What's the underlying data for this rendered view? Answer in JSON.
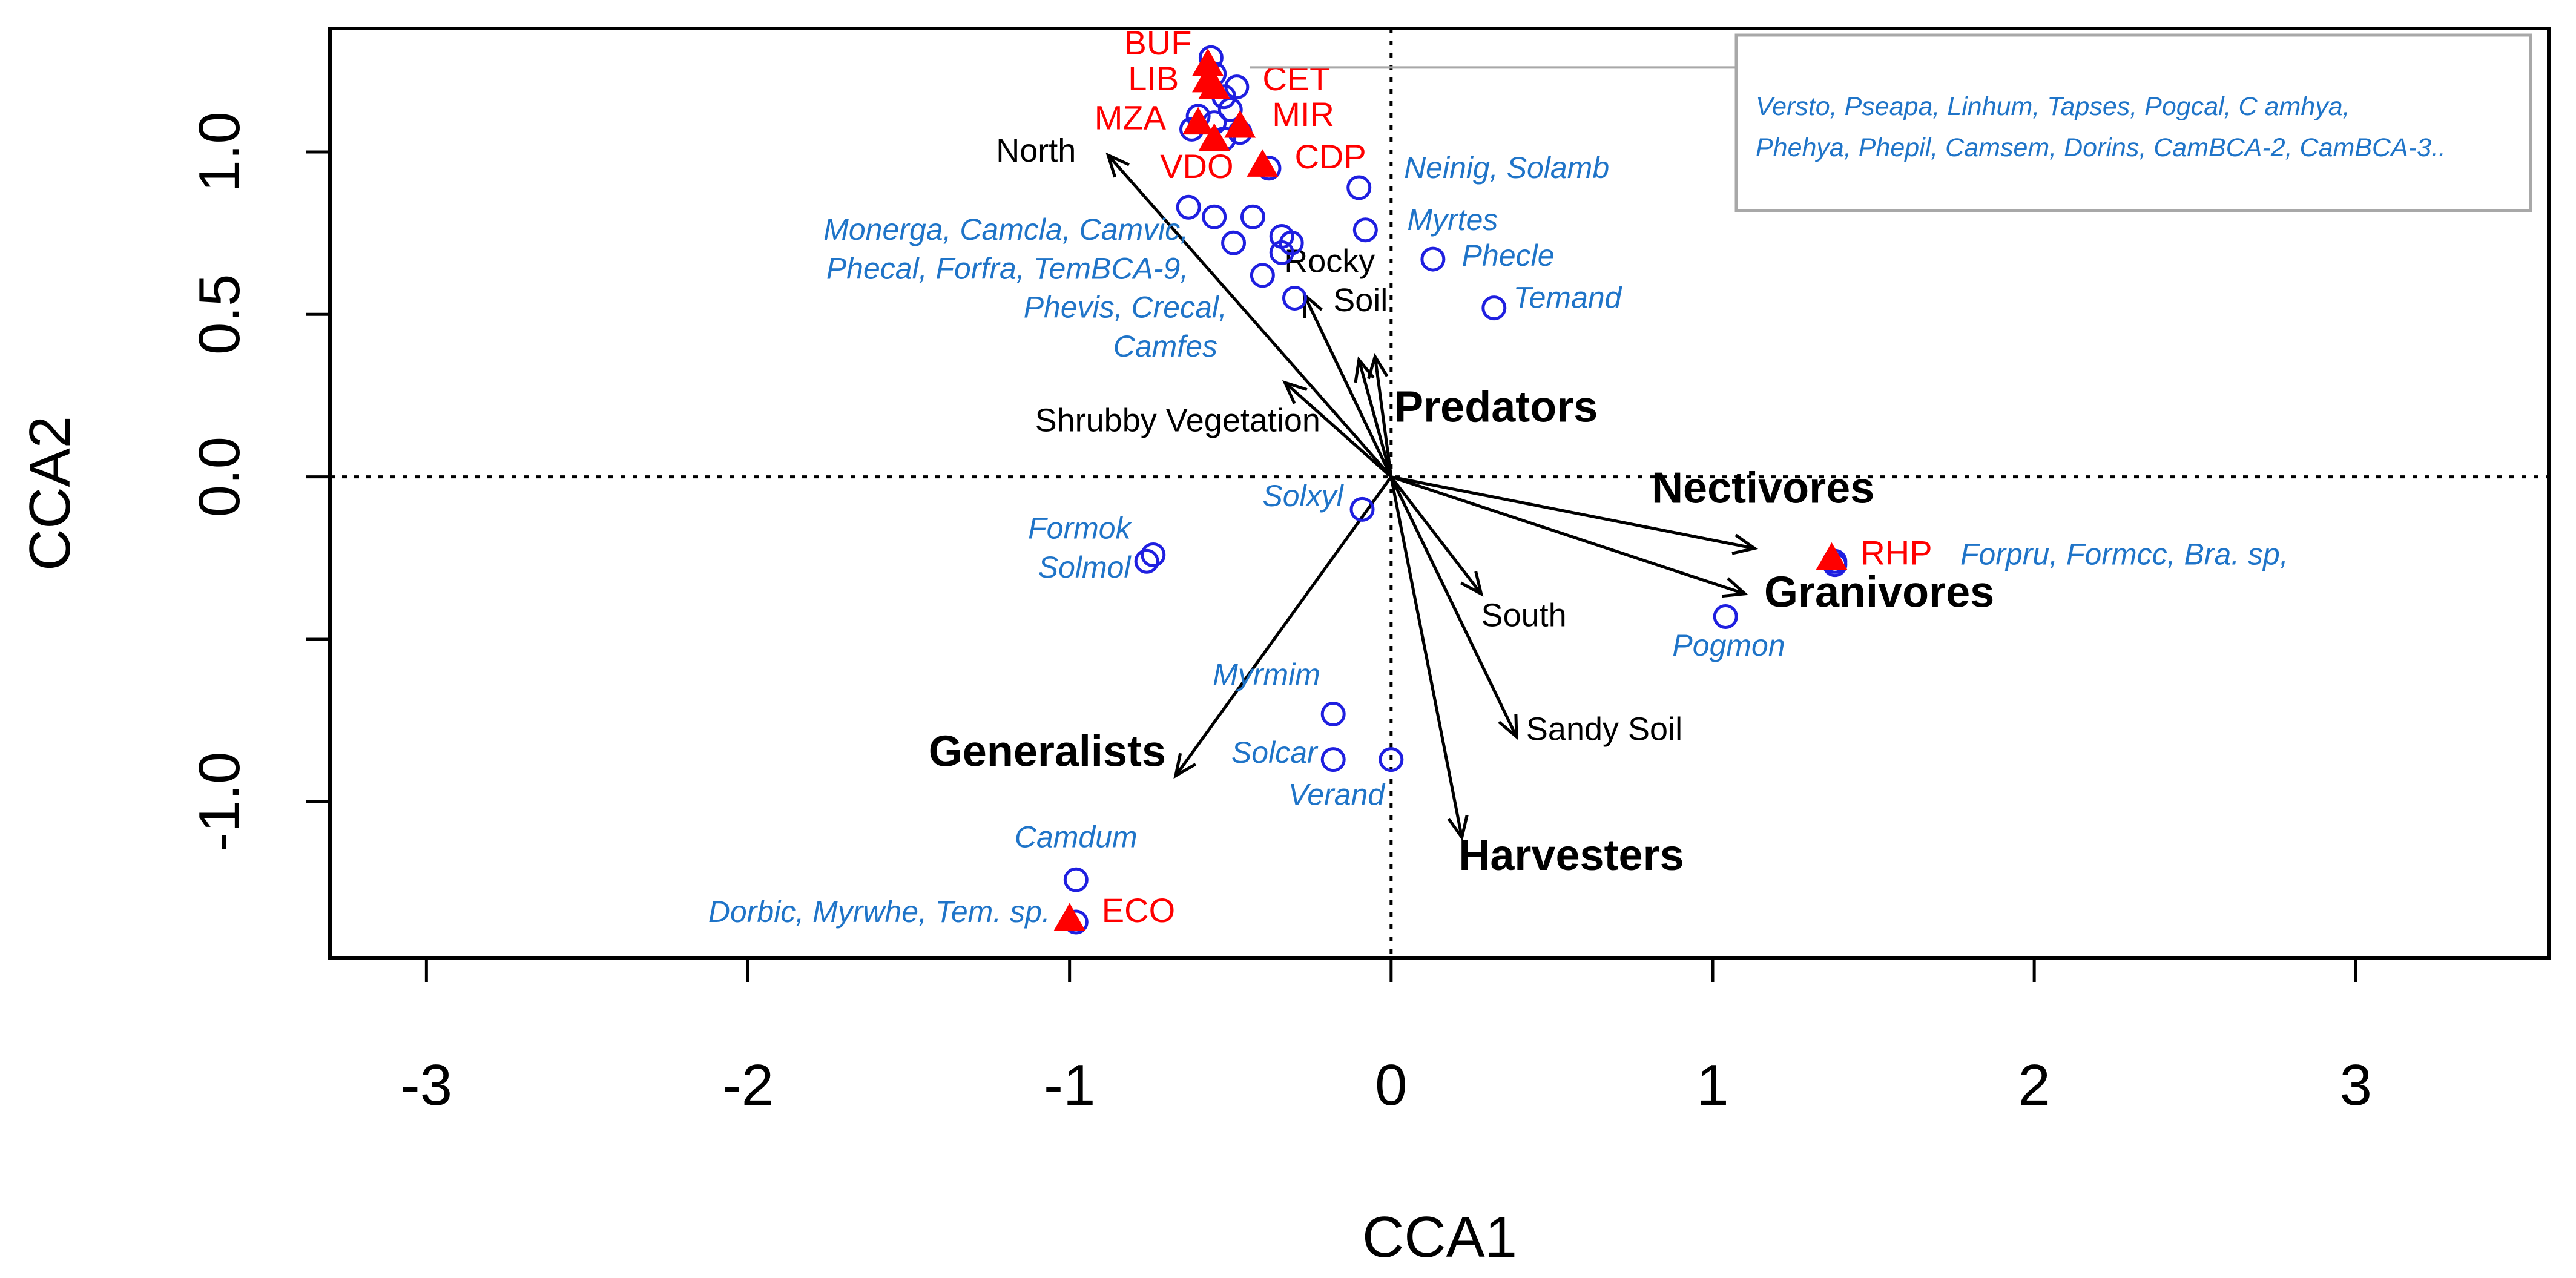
{
  "chart_data": {
    "type": "scatter",
    "subtype": "CCA biplot",
    "xlabel": "CCA1",
    "ylabel": "CCA2",
    "xlim": [
      -3.3,
      3.6
    ],
    "ylim": [
      -1.48,
      1.38
    ],
    "x_ticks": [
      -3,
      -2,
      -1,
      0,
      1,
      2,
      3
    ],
    "x_tick_labels": [
      "-3",
      "-2",
      "-1",
      "0",
      "1",
      "2",
      "3"
    ],
    "y_ticks": [
      -1.0,
      -0.5,
      0.0,
      0.5,
      1.0
    ],
    "y_tick_labels": [
      "-1.0",
      "",
      "0.0",
      "0.5",
      "1.0"
    ],
    "reference_lines": {
      "x": 0,
      "y": 0,
      "style": "dotted"
    },
    "colors": {
      "species": "#1f1fe0",
      "species_label": "#1f74c8",
      "site": "#ff0000",
      "arrow": "#000000"
    },
    "species_points": [
      {
        "x": -0.56,
        "y": 1.29
      },
      {
        "x": -0.55,
        "y": 1.24
      },
      {
        "x": -0.48,
        "y": 1.2
      },
      {
        "x": -0.52,
        "y": 1.17
      },
      {
        "x": -0.5,
        "y": 1.13
      },
      {
        "x": -0.6,
        "y": 1.11
      },
      {
        "x": -0.55,
        "y": 1.09
      },
      {
        "x": -0.47,
        "y": 1.06
      },
      {
        "x": -0.62,
        "y": 1.07
      },
      {
        "x": -0.52,
        "y": 1.04
      },
      {
        "x": -0.38,
        "y": 0.95
      },
      {
        "x": -0.1,
        "y": 0.89
      },
      {
        "x": -0.63,
        "y": 0.83
      },
      {
        "x": -0.55,
        "y": 0.8
      },
      {
        "x": -0.43,
        "y": 0.8
      },
      {
        "x": -0.34,
        "y": 0.74
      },
      {
        "x": -0.31,
        "y": 0.72
      },
      {
        "x": -0.49,
        "y": 0.72
      },
      {
        "x": -0.34,
        "y": 0.69
      },
      {
        "x": -0.4,
        "y": 0.62
      },
      {
        "x": -0.3,
        "y": 0.55
      },
      {
        "x": -0.08,
        "y": 0.76
      },
      {
        "x": 0.13,
        "y": 0.67
      },
      {
        "x": 0.32,
        "y": 0.52
      },
      {
        "x": -0.09,
        "y": -0.1
      },
      {
        "x": -0.74,
        "y": -0.24
      },
      {
        "x": -0.76,
        "y": -0.26
      },
      {
        "x": 1.38,
        "y": -0.26
      },
      {
        "x": 1.38,
        "y": -0.27
      },
      {
        "x": 1.04,
        "y": -0.43
      },
      {
        "x": -0.18,
        "y": -0.73
      },
      {
        "x": -0.18,
        "y": -0.87
      },
      {
        "x": 0.0,
        "y": -0.87
      },
      {
        "x": -0.98,
        "y": -1.24
      },
      {
        "x": -0.98,
        "y": -1.37
      }
    ],
    "species_labels": [
      {
        "text": "Neinig, Solamb",
        "x": 0.04,
        "y": 0.92,
        "anchor": "start"
      },
      {
        "text": "Myrtes",
        "x": 0.05,
        "y": 0.76,
        "anchor": "start"
      },
      {
        "text": "Phecle",
        "x": 0.22,
        "y": 0.65,
        "anchor": "start"
      },
      {
        "text": "Temand",
        "x": 0.38,
        "y": 0.52,
        "anchor": "start"
      },
      {
        "text": "Monerga, Camcla, Camvic,",
        "x": -0.63,
        "y": 0.73,
        "anchor": "end"
      },
      {
        "text": "Phecal, Forfra, TemBCA-9,",
        "x": -0.63,
        "y": 0.61,
        "anchor": "end"
      },
      {
        "text": "Phevis, Crecal,",
        "x": -0.51,
        "y": 0.49,
        "anchor": "end"
      },
      {
        "text": "Camfes",
        "x": -0.54,
        "y": 0.37,
        "anchor": "end"
      },
      {
        "text": "Solxyl",
        "x": -0.4,
        "y": -0.09,
        "anchor": "start"
      },
      {
        "text": "Formok",
        "x": -0.81,
        "y": -0.19,
        "anchor": "end"
      },
      {
        "text": "Solmol",
        "x": -0.81,
        "y": -0.31,
        "anchor": "end"
      },
      {
        "text": "Forpru, Formcc, Bra. sp,",
        "x": 1.77,
        "y": -0.27,
        "anchor": "start"
      },
      {
        "text": "Pogmon",
        "x": 1.05,
        "y": -0.55,
        "anchor": "middle"
      },
      {
        "text": "Myrmim",
        "x": -0.22,
        "y": -0.64,
        "anchor": "end"
      },
      {
        "text": "Solcar",
        "x": -0.23,
        "y": -0.88,
        "anchor": "end"
      },
      {
        "text": "Verand",
        "x": -0.17,
        "y": -1.01,
        "anchor": "middle"
      },
      {
        "text": "Camdum",
        "x": -0.98,
        "y": -1.14,
        "anchor": "middle"
      },
      {
        "text": "Dorbic, Myrwhe, Tem. sp.",
        "x": -1.06,
        "y": -1.37,
        "anchor": "end"
      }
    ],
    "legend_box_lines": [
      "Versto,  Pseapa, Linhum, Tapses, Pogcal, C amhya,",
      "Phehya, Phepil,  Camsem, Dorins, CamBCA-2, CamBCA-3.."
    ],
    "sites": [
      {
        "name": "BUF",
        "x": -0.57,
        "y": 1.27,
        "label_x": -0.62,
        "label_y": 1.3,
        "anchor": "end"
      },
      {
        "name": "LIB",
        "x": -0.57,
        "y": 1.22,
        "label_x": -0.66,
        "label_y": 1.19,
        "anchor": "end"
      },
      {
        "name": "CET",
        "x": -0.55,
        "y": 1.2,
        "label_x": -0.4,
        "label_y": 1.19,
        "anchor": "start"
      },
      {
        "name": "MZA",
        "x": -0.6,
        "y": 1.09,
        "label_x": -0.7,
        "label_y": 1.07,
        "anchor": "end"
      },
      {
        "name": "MIR",
        "x": -0.47,
        "y": 1.08,
        "label_x": -0.37,
        "label_y": 1.08,
        "anchor": "start"
      },
      {
        "name": "VDO",
        "x": -0.55,
        "y": 1.04,
        "label_x": -0.49,
        "label_y": 0.92,
        "anchor": "end"
      },
      {
        "name": "CDP",
        "x": -0.4,
        "y": 0.96,
        "label_x": -0.3,
        "label_y": 0.95,
        "anchor": "start"
      },
      {
        "name": "RHP",
        "x": 1.37,
        "y": -0.25,
        "label_x": 1.46,
        "label_y": -0.27,
        "anchor": "start"
      },
      {
        "name": "ECO",
        "x": -1.0,
        "y": -1.36,
        "label_x": -0.9,
        "label_y": -1.37,
        "anchor": "start"
      }
    ],
    "env_vectors": [
      {
        "name": "North",
        "x": -0.88,
        "y": 0.99,
        "label_x": -0.98,
        "label_y": 0.97,
        "anchor": "end",
        "bold": false
      },
      {
        "name": "Rocky",
        "x": -0.1,
        "y": 0.36,
        "label_x": -0.05,
        "label_y": 0.63,
        "anchor": "end",
        "bold": false
      },
      {
        "name": "Soil",
        "x": -0.27,
        "y": 0.56,
        "label_x": -0.18,
        "label_y": 0.51,
        "anchor": "start",
        "bold": false
      },
      {
        "name": "Shrubby Vegetation",
        "x": -0.33,
        "y": 0.29,
        "label_x": -0.22,
        "label_y": 0.14,
        "anchor": "end",
        "bold": false
      },
      {
        "name": "Predators",
        "x": -0.05,
        "y": 0.37,
        "label_x": 0.01,
        "label_y": 0.17,
        "anchor": "start",
        "bold": true
      },
      {
        "name": "Nectivores",
        "x": 1.13,
        "y": -0.22,
        "label_x": 0.81,
        "label_y": -0.08,
        "anchor": "start",
        "bold": true
      },
      {
        "name": "Granivores",
        "x": 1.1,
        "y": -0.36,
        "label_x": 1.16,
        "label_y": -0.4,
        "anchor": "start",
        "bold": true
      },
      {
        "name": "South",
        "x": 0.28,
        "y": -0.36,
        "label_x": 0.28,
        "label_y": -0.46,
        "anchor": "start",
        "bold": false
      },
      {
        "name": "Sandy Soil",
        "x": 0.39,
        "y": -0.8,
        "label_x": 0.42,
        "label_y": -0.81,
        "anchor": "start",
        "bold": false
      },
      {
        "name": "Harvesters",
        "x": 0.22,
        "y": -1.11,
        "label_x": 0.21,
        "label_y": -1.21,
        "anchor": "start",
        "bold": true
      },
      {
        "name": "Generalists",
        "x": -0.67,
        "y": -0.92,
        "label_x": -0.7,
        "label_y": -0.89,
        "anchor": "end",
        "bold": true
      }
    ]
  }
}
